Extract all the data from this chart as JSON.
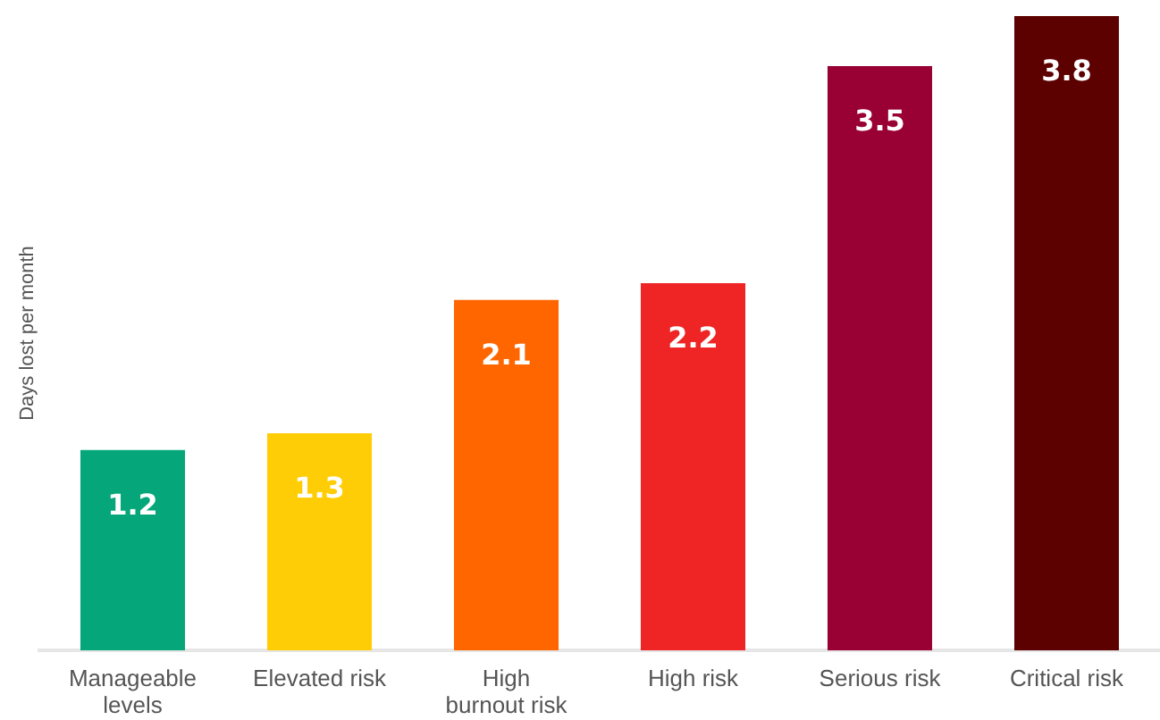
{
  "chart_data": {
    "type": "bar",
    "ylabel": "Days lost per month",
    "categories": [
      "Manageable levels",
      "Elevated risk",
      "High burnout risk",
      "High risk",
      "Serious risk",
      "Critical risk"
    ],
    "values": [
      1.2,
      1.3,
      2.1,
      2.2,
      3.5,
      3.8
    ],
    "colors": [
      "#05a77a",
      "#ffcd05",
      "#ff6600",
      "#ee2524",
      "#990033",
      "#5c0000"
    ],
    "ylim": [
      0,
      3.8
    ],
    "data_labels": true,
    "tick_labels": "x"
  }
}
